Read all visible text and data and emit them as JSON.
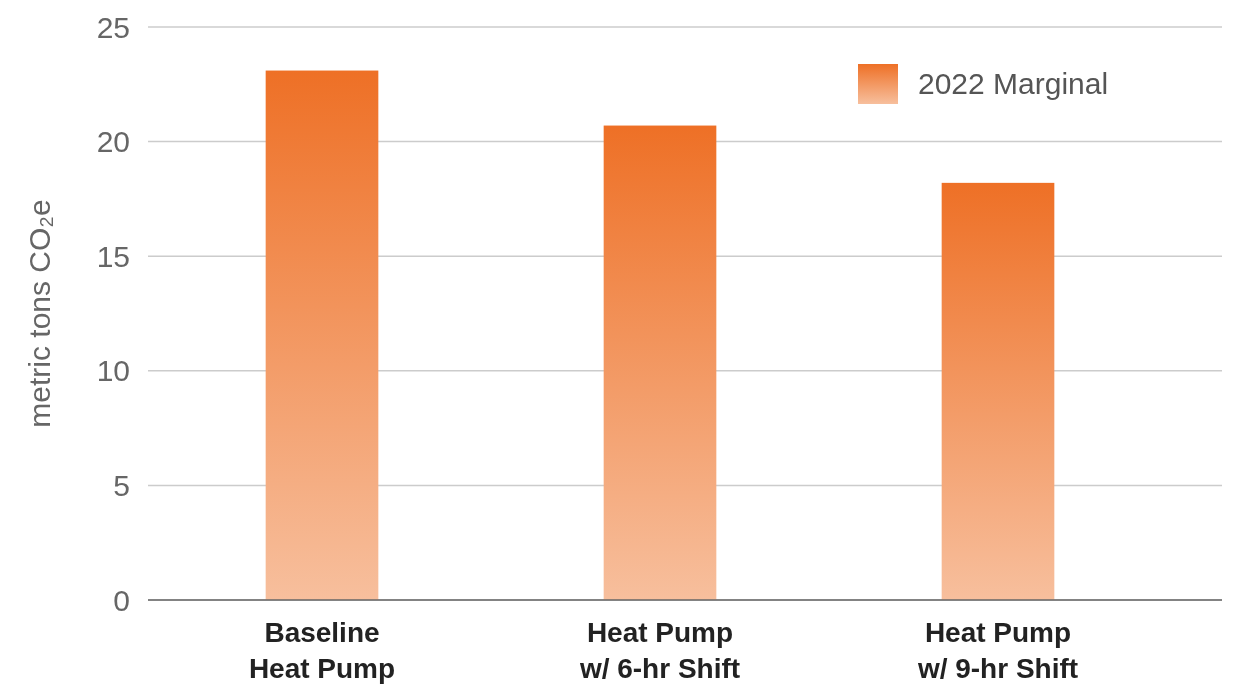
{
  "chart_data": {
    "type": "bar",
    "ylabel": "metric tons CO₂e",
    "categories": [
      "Baseline\nHeat Pump",
      "Heat Pump\nw/ 6-hr Shift",
      "Heat Pump\nw/ 9-hr Shift"
    ],
    "series": [
      {
        "name": "2022 Marginal",
        "color": "#ee7026",
        "values": [
          23.1,
          20.7,
          18.2
        ]
      }
    ],
    "ylim": [
      0,
      25
    ],
    "yticks": [
      0,
      5,
      10,
      15,
      20,
      25
    ],
    "grid": "y",
    "legend": "top right"
  }
}
